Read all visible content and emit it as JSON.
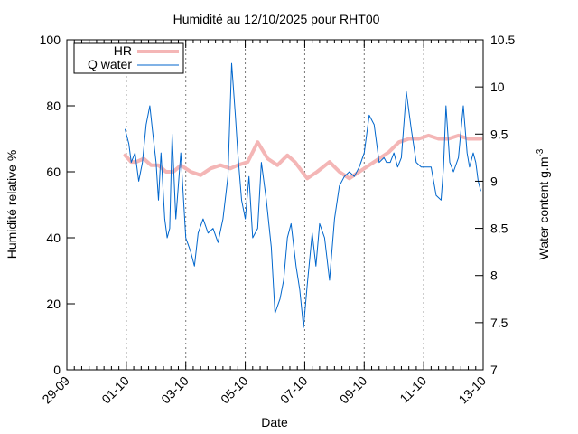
{
  "chart_data": {
    "type": "line",
    "title": "Humidité au 12/10/2025 pour RHT00",
    "xlabel": "Date",
    "ylabel": "Humidité relative %",
    "y2label_base": "Water content g.m",
    "y2label_sup": "-3",
    "xlim": [
      "2025-09-29",
      "2025-10-13"
    ],
    "ylim": [
      0,
      100
    ],
    "y2lim": [
      7,
      10.5
    ],
    "x_ticks": [
      "29-09",
      "01-10",
      "03-10",
      "05-10",
      "07-10",
      "09-10",
      "11-10",
      "13-10"
    ],
    "y_ticks": [
      "0",
      "20",
      "40",
      "60",
      "80",
      "100"
    ],
    "y2_ticks": [
      "7",
      "7.5",
      "8",
      "8.5",
      "9",
      "9.5",
      "10",
      "10.5"
    ],
    "grid": "vertical dashed at labeled dates",
    "legend_position": "top-left",
    "series": [
      {
        "name": "HR",
        "axis": "left",
        "color": "#f4b6b6",
        "x": [
          "2025-09-30 23:00",
          "2025-10-01 04:00",
          "2025-10-01 08:00",
          "2025-10-01 14:00",
          "2025-10-01 20:00",
          "2025-10-02 02:00",
          "2025-10-02 08:00",
          "2025-10-02 14:00",
          "2025-10-02 20:00",
          "2025-10-03 04:00",
          "2025-10-03 12:00",
          "2025-10-03 20:00",
          "2025-10-04 04:00",
          "2025-10-04 12:00",
          "2025-10-04 18:00",
          "2025-10-05 02:00",
          "2025-10-05 10:00",
          "2025-10-05 18:00",
          "2025-10-06 02:00",
          "2025-10-06 10:00",
          "2025-10-06 16:00",
          "2025-10-07 02:00",
          "2025-10-07 10:00",
          "2025-10-07 20:00",
          "2025-10-08 04:00",
          "2025-10-08 12:00",
          "2025-10-08 20:00",
          "2025-10-09 04:00",
          "2025-10-09 12:00",
          "2025-10-09 20:00",
          "2025-10-10 04:00",
          "2025-10-10 12:00",
          "2025-10-10 20:00",
          "2025-10-11 04:00",
          "2025-10-11 12:00",
          "2025-10-11 20:00",
          "2025-10-12 04:00",
          "2025-10-12 12:00",
          "2025-10-12 20:00",
          "2025-10-12 22:00"
        ],
        "values": [
          65,
          63,
          63,
          64,
          62,
          62,
          60,
          60,
          62,
          60,
          59,
          61,
          62,
          61,
          62,
          63,
          69,
          64,
          62,
          65,
          63,
          58,
          60,
          63,
          60,
          58,
          60,
          62,
          64,
          66,
          69,
          70,
          70,
          71,
          70,
          70,
          71,
          70,
          70,
          70
        ]
      },
      {
        "name": "Q water",
        "axis": "right",
        "color": "#0066cc",
        "x": [
          "2025-09-30 23:00",
          "2025-10-01 02:00",
          "2025-10-01 04:00",
          "2025-10-01 07:00",
          "2025-10-01 10:00",
          "2025-10-01 13:00",
          "2025-10-01 16:00",
          "2025-10-01 19:00",
          "2025-10-01 21:00",
          "2025-10-02 00:00",
          "2025-10-02 02:00",
          "2025-10-02 04:00",
          "2025-10-02 07:00",
          "2025-10-02 09:00",
          "2025-10-02 11:00",
          "2025-10-02 13:00",
          "2025-10-02 16:00",
          "2025-10-02 20:00",
          "2025-10-03 00:00",
          "2025-10-03 04:00",
          "2025-10-03 07:00",
          "2025-10-03 10:00",
          "2025-10-03 14:00",
          "2025-10-03 18:00",
          "2025-10-03 22:00",
          "2025-10-04 02:00",
          "2025-10-04 06:00",
          "2025-10-04 10:00",
          "2025-10-04 13:00",
          "2025-10-04 16:00",
          "2025-10-04 18:00",
          "2025-10-04 21:00",
          "2025-10-05 00:00",
          "2025-10-05 03:00",
          "2025-10-05 06:00",
          "2025-10-05 10:00",
          "2025-10-05 13:00",
          "2025-10-05 17:00",
          "2025-10-05 21:00",
          "2025-10-06 00:00",
          "2025-10-06 04:00",
          "2025-10-06 07:00",
          "2025-10-06 10:00",
          "2025-10-06 13:00",
          "2025-10-06 17:00",
          "2025-10-06 20:00",
          "2025-10-06 23:00",
          "2025-10-07 02:00",
          "2025-10-07 06:00",
          "2025-10-07 09:00",
          "2025-10-07 12:00",
          "2025-10-07 16:00",
          "2025-10-07 20:00",
          "2025-10-08 00:00",
          "2025-10-08 04:00",
          "2025-10-08 08:00",
          "2025-10-08 12:00",
          "2025-10-08 16:00",
          "2025-10-08 20:00",
          "2025-10-09 00:00",
          "2025-10-09 04:00",
          "2025-10-09 08:00",
          "2025-10-09 12:00",
          "2025-10-09 16:00",
          "2025-10-09 18:00",
          "2025-10-09 21:00",
          "2025-10-10 00:00",
          "2025-10-10 03:00",
          "2025-10-10 06:00",
          "2025-10-10 10:00",
          "2025-10-10 14:00",
          "2025-10-10 18:00",
          "2025-10-10 22:00",
          "2025-10-11 02:00",
          "2025-10-11 06:00",
          "2025-10-11 10:00",
          "2025-10-11 14:00",
          "2025-10-11 16:00",
          "2025-10-11 18:00",
          "2025-10-11 21:00",
          "2025-10-12 00:00",
          "2025-10-12 04:00",
          "2025-10-12 08:00",
          "2025-10-12 11:00",
          "2025-10-12 13:00",
          "2025-10-12 16:00",
          "2025-10-12 18:00",
          "2025-10-12 20:00",
          "2025-10-12 22:00"
        ],
        "values": [
          9.55,
          9.4,
          9.2,
          9.3,
          9.0,
          9.2,
          9.6,
          9.8,
          9.55,
          9.2,
          8.8,
          9.3,
          8.6,
          8.4,
          8.5,
          9.5,
          8.6,
          9.3,
          8.4,
          8.25,
          8.1,
          8.45,
          8.6,
          8.45,
          8.5,
          8.35,
          8.6,
          9.05,
          10.25,
          9.7,
          9.3,
          8.8,
          8.6,
          9.05,
          8.4,
          8.5,
          9.2,
          8.8,
          8.3,
          7.6,
          7.75,
          7.95,
          8.4,
          8.55,
          8.1,
          7.85,
          7.45,
          7.9,
          8.45,
          8.1,
          8.55,
          8.4,
          7.95,
          8.6,
          8.95,
          9.05,
          9.1,
          9.05,
          9.15,
          9.3,
          9.7,
          9.6,
          9.2,
          9.25,
          9.2,
          9.2,
          9.3,
          9.15,
          9.25,
          9.95,
          9.55,
          9.2,
          9.15,
          9.15,
          9.15,
          8.85,
          8.8,
          9.15,
          9.8,
          9.2,
          9.1,
          9.25,
          9.8,
          9.3,
          9.15,
          9.3,
          9.2,
          9.0,
          8.9
        ]
      }
    ]
  }
}
